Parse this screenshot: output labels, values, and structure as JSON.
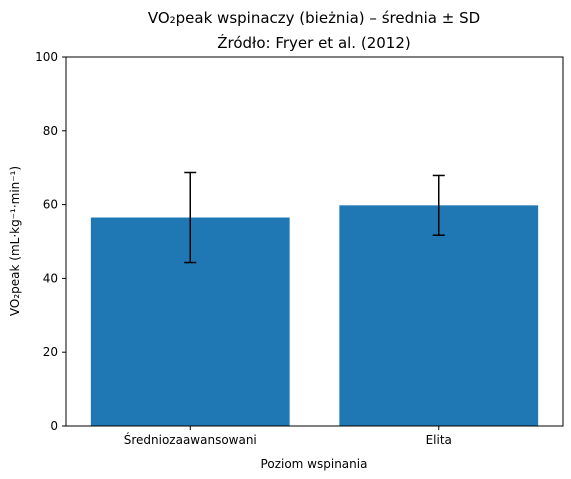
{
  "chart_data": {
    "type": "bar",
    "title": "VO₂peak wspinaczy (bieżnia) – średnia ± SD",
    "subtitle": "Źródło: Fryer et al. (2012)",
    "xlabel": "Poziom wspinania",
    "ylabel": "VO₂peak (mL·kg⁻¹·min⁻¹)",
    "categories": [
      "Średniozaawansowani",
      "Elita"
    ],
    "values": [
      56.5,
      59.8
    ],
    "error": [
      12.2,
      8.1
    ],
    "ylim": [
      0,
      100
    ],
    "yticks": [
      "0",
      "20",
      "40",
      "60",
      "80",
      "100"
    ],
    "bar_color": "#1f77b4",
    "grid": false
  }
}
